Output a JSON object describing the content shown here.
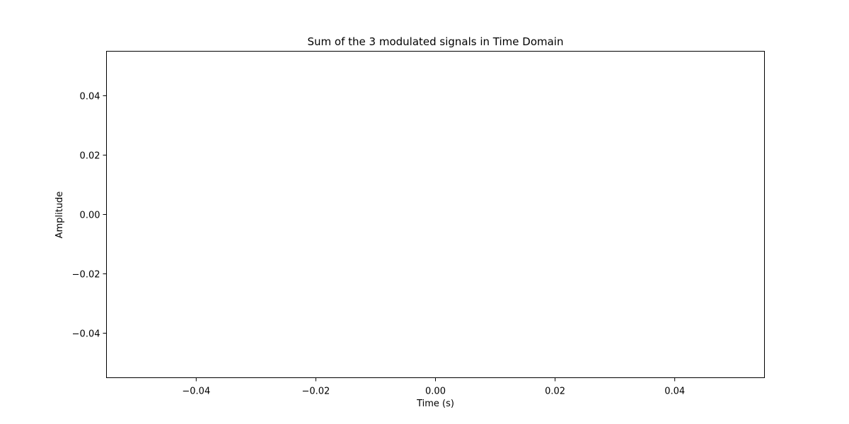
{
  "chart_data": {
    "type": "line",
    "title": "Sum of the 3 modulated signals in Time Domain",
    "xlabel": "Time (s)",
    "ylabel": "Amplitude",
    "xlim": [
      -0.055,
      0.055
    ],
    "ylim": [
      -0.055,
      0.055
    ],
    "xticks": [
      -0.04,
      -0.02,
      0.0,
      0.02,
      0.04
    ],
    "yticks": [
      -0.04,
      -0.02,
      0.0,
      0.02,
      0.04
    ],
    "xtick_labels": [
      "−0.04",
      "−0.02",
      "0.00",
      "0.02",
      "0.04"
    ],
    "ytick_labels": [
      "−0.04",
      "−0.02",
      "0.00",
      "0.02",
      "0.04"
    ],
    "grid": false,
    "series": []
  }
}
